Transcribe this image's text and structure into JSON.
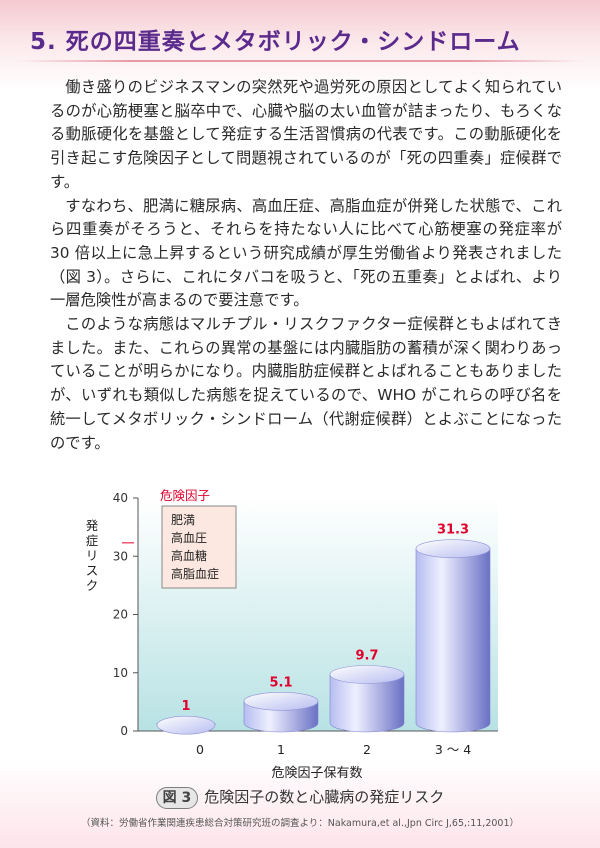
{
  "title": "5. 死の四重奏とメタボリック・シンドローム",
  "paragraphs": [
    "働き盛りのビジネスマンの突然死や過労死の原因としてよく知られているのが心筋梗塞と脳卒中で、心臓や脳の太い血管が詰まったり、もろくなる動脈硬化を基盤として発症する生活習慣病の代表です。この動脈硬化を引き起こす危険因子として問題視されているのが「死の四重奏」症候群です。",
    "すなわち、肥満に糖尿病、高血圧症、高脂血症が併発した状態で、これら四重奏がそろうと、それらを持たない人に比べて心筋梗塞の発症率が 30 倍以上に急上昇するという研究成績が厚生労働省より発表されました（図 3）。さらに、これにタバコを吸うと、「死の五重奏」とよばれ、より一層危険性が高まるので要注意です。",
    "このような病態はマルチプル・リスクファクター症候群ともよばれてきました。また、これらの異常の基盤には内臓脂肪の蓄積が深く関わりあっていることが明らかになり。内臓脂肪症候群とよばれることもありましたが、いずれも類似した病態を捉えているので、WHO がこれらの呼び名を統一してメタボリック・シンドローム（代謝症候群）とよぶことになったのです。"
  ],
  "chart_data": {
    "type": "bar",
    "categories": [
      "0",
      "1",
      "2",
      "3 〜 4"
    ],
    "values": [
      1,
      5.1,
      9.7,
      31.3
    ],
    "value_labels": [
      "1",
      "5.1",
      "9.7",
      "31.3"
    ],
    "ylabel": "発症リスク",
    "xlabel": "危険因子保有数",
    "ylim": [
      0,
      40
    ],
    "yticks": [
      "0",
      "10",
      "20",
      "30",
      "40"
    ],
    "legend": {
      "title": "危険因子",
      "items": [
        "肥満",
        "高血圧",
        "高血糖",
        "高脂血症"
      ]
    },
    "colors": {
      "bar_light": "#eef0ff",
      "bar_mid": "#b7bdf0",
      "bar_dark": "#6a70c4",
      "value_label": "#e0002b",
      "plot_bg_top": "#ffffff",
      "plot_bg_bottom": "#b8e2e4",
      "legend_bg": "#fce8e0"
    },
    "grid": false
  },
  "figure": {
    "badge": "図 3",
    "caption": "危険因子の数と心臓病の発症リスク",
    "source": "（資料：労働省作業関連疾患総合対策研究班の調査より：Nakamura,et al.,Jpn Circ J,65,:11,2001）"
  }
}
